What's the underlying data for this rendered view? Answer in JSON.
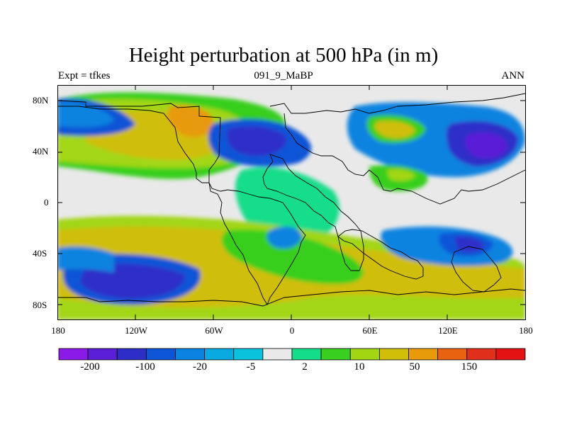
{
  "title": "Height perturbation at 500 hPa (in m)",
  "left_label": "Expt = tfkes",
  "center_label": "091_9_MaBP",
  "right_label": "ANN",
  "y_ticks": [
    "80N",
    "40N",
    "0",
    "40S",
    "80S"
  ],
  "x_ticks": [
    "180",
    "120W",
    "60W",
    "0",
    "60E",
    "120E",
    "180"
  ],
  "colorbar": {
    "colors": [
      "#8b1ae8",
      "#5a1fd6",
      "#2d2dc8",
      "#0c55d6",
      "#0a83e0",
      "#09a9e2",
      "#0ac2dc",
      "#e9e9e9",
      "#14dd8a",
      "#39cf1e",
      "#a2d612",
      "#d0be08",
      "#e79a0a",
      "#e8620f",
      "#e0301c",
      "#e41212"
    ],
    "labels": [
      "-200",
      "-100",
      "-20",
      "-5",
      "2",
      "10",
      "50",
      "150"
    ]
  }
}
